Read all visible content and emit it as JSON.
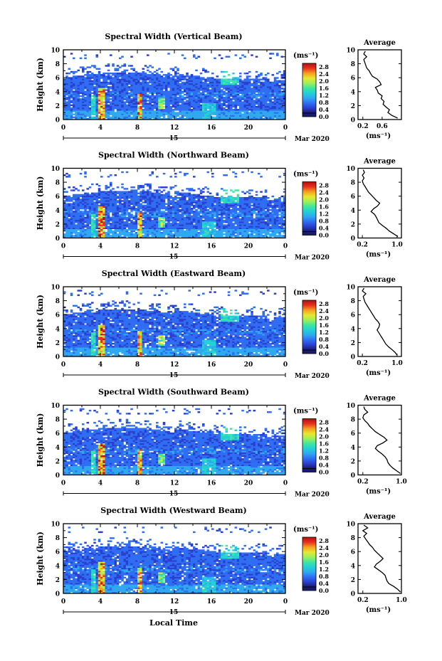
{
  "figure": {
    "xlabel": "Local Time",
    "ylabel": "Height (km)",
    "date_label": "Mar 2020",
    "day_label": "15",
    "unit_label": "(ms⁻¹)",
    "avg_title": "Average",
    "avg_xlabel": "(ms⁻¹)",
    "x_ticks": [
      "0",
      "4",
      "8",
      "12",
      "16",
      "20",
      "0"
    ],
    "y_ticks": [
      "0",
      "2",
      "4",
      "6",
      "8",
      "10"
    ],
    "colorbar_ticks": [
      "0.0",
      "0.4",
      "0.8",
      "1.2",
      "1.6",
      "2.0",
      "2.4",
      "2.8"
    ],
    "colorscale": [
      "#1a1a6e",
      "#2a3fcf",
      "#2f6df2",
      "#2fa8f0",
      "#22d0d6",
      "#3ee6a0",
      "#9cf05a",
      "#e8e830",
      "#f5a020",
      "#e83020",
      "#b01010"
    ],
    "nodata_color": "#ffffff"
  },
  "chart_data": [
    {
      "type": "heatmap",
      "title": "Spectral Width (Vertical Beam)",
      "xlim": [
        0,
        24
      ],
      "ylim": [
        0,
        10
      ],
      "clim": [
        0.0,
        2.8
      ],
      "avg": {
        "type": "line",
        "xlim": [
          0.1,
          1.0
        ],
        "x_ticks": [
          "0.2",
          "0.6"
        ],
        "h": [
          0.2,
          0.6,
          1.0,
          1.4,
          1.8,
          2.2,
          2.6,
          3.0,
          3.4,
          3.8,
          4.2,
          4.6,
          5.0,
          5.4,
          5.8,
          6.2,
          6.6,
          7.0,
          7.4,
          7.8,
          8.2,
          8.6,
          9.0,
          9.4,
          9.8
        ],
        "x": [
          0.92,
          0.8,
          0.72,
          0.75,
          0.68,
          0.62,
          0.64,
          0.58,
          0.6,
          0.52,
          0.5,
          0.46,
          0.58,
          0.55,
          0.5,
          0.4,
          0.36,
          0.33,
          0.28,
          0.26,
          0.24,
          0.22,
          0.28,
          0.22,
          0.25
        ]
      }
    },
    {
      "type": "heatmap",
      "title": "Spectral Width (Northward Beam)",
      "xlim": [
        0,
        24
      ],
      "ylim": [
        0,
        10
      ],
      "clim": [
        0.0,
        2.8
      ],
      "avg": {
        "type": "line",
        "xlim": [
          0.1,
          1.1
        ],
        "x_ticks": [
          "0.2",
          "1.0"
        ],
        "h": [
          0.2,
          0.6,
          1.0,
          1.4,
          1.8,
          2.2,
          2.6,
          3.0,
          3.4,
          3.8,
          4.2,
          4.6,
          5.0,
          5.4,
          5.8,
          6.2,
          6.6,
          7.0,
          7.4,
          7.8,
          8.2,
          8.6,
          9.0,
          9.4,
          9.8
        ],
        "x": [
          1.02,
          0.92,
          0.82,
          0.75,
          0.66,
          0.58,
          0.55,
          0.52,
          0.48,
          0.4,
          0.46,
          0.55,
          0.6,
          0.52,
          0.46,
          0.4,
          0.34,
          0.3,
          0.26,
          0.22,
          0.2,
          0.24,
          0.2,
          0.25,
          0.22
        ]
      }
    },
    {
      "type": "heatmap",
      "title": "Spectral Width (Eastward Beam)",
      "xlim": [
        0,
        24
      ],
      "ylim": [
        0,
        10
      ],
      "clim": [
        0.0,
        2.8
      ],
      "avg": {
        "type": "line",
        "xlim": [
          0.1,
          1.1
        ],
        "x_ticks": [
          "0.2",
          "1.0"
        ],
        "h": [
          0.2,
          0.6,
          1.0,
          1.4,
          1.8,
          2.2,
          2.6,
          3.0,
          3.4,
          3.8,
          4.2,
          4.6,
          5.0,
          5.4,
          5.8,
          6.2,
          6.6,
          7.0,
          7.4,
          7.8,
          8.2,
          8.6,
          9.0,
          9.4,
          9.8
        ],
        "x": [
          1.0,
          0.95,
          0.88,
          0.8,
          0.74,
          0.7,
          0.66,
          0.62,
          0.58,
          0.54,
          0.58,
          0.6,
          0.56,
          0.5,
          0.46,
          0.42,
          0.38,
          0.34,
          0.3,
          0.26,
          0.24,
          0.22,
          0.28,
          0.2,
          0.24
        ]
      }
    },
    {
      "type": "heatmap",
      "title": "Spectral Width (Southward Beam)",
      "xlim": [
        0,
        24
      ],
      "ylim": [
        0,
        10
      ],
      "clim": [
        0.0,
        2.8
      ],
      "avg": {
        "type": "line",
        "xlim": [
          0.1,
          1.0
        ],
        "x_ticks": [
          "0.2",
          "1.0"
        ],
        "h": [
          0.2,
          0.6,
          1.0,
          1.4,
          1.8,
          2.2,
          2.6,
          3.0,
          3.4,
          3.8,
          4.2,
          4.6,
          5.0,
          5.4,
          5.8,
          6.2,
          6.6,
          7.0,
          7.4,
          7.8,
          8.2,
          8.6,
          9.0,
          9.4,
          9.8
        ],
        "x": [
          0.98,
          0.9,
          0.82,
          0.76,
          0.72,
          0.7,
          0.66,
          0.6,
          0.52,
          0.46,
          0.5,
          0.62,
          0.7,
          0.64,
          0.55,
          0.46,
          0.4,
          0.34,
          0.3,
          0.24,
          0.2,
          0.22,
          0.3,
          0.24,
          0.22
        ]
      }
    },
    {
      "type": "heatmap",
      "title": "Spectral Width (Westward Beam)",
      "xlim": [
        0,
        24
      ],
      "ylim": [
        0,
        10
      ],
      "clim": [
        0.0,
        2.8
      ],
      "avg": {
        "type": "line",
        "xlim": [
          0.1,
          1.0
        ],
        "x_ticks": [
          "0.2",
          "1.0"
        ],
        "h": [
          0.2,
          0.6,
          1.0,
          1.4,
          1.8,
          2.2,
          2.6,
          3.0,
          3.4,
          3.8,
          4.2,
          4.6,
          5.0,
          5.4,
          5.8,
          6.2,
          6.6,
          7.0,
          7.4,
          7.8,
          8.2,
          8.6,
          9.0,
          9.4,
          9.8
        ],
        "x": [
          0.98,
          0.92,
          0.84,
          0.74,
          0.7,
          0.68,
          0.66,
          0.6,
          0.52,
          0.44,
          0.48,
          0.56,
          0.62,
          0.56,
          0.5,
          0.44,
          0.4,
          0.34,
          0.3,
          0.26,
          0.22,
          0.28,
          0.2,
          0.3,
          0.22
        ]
      }
    }
  ]
}
